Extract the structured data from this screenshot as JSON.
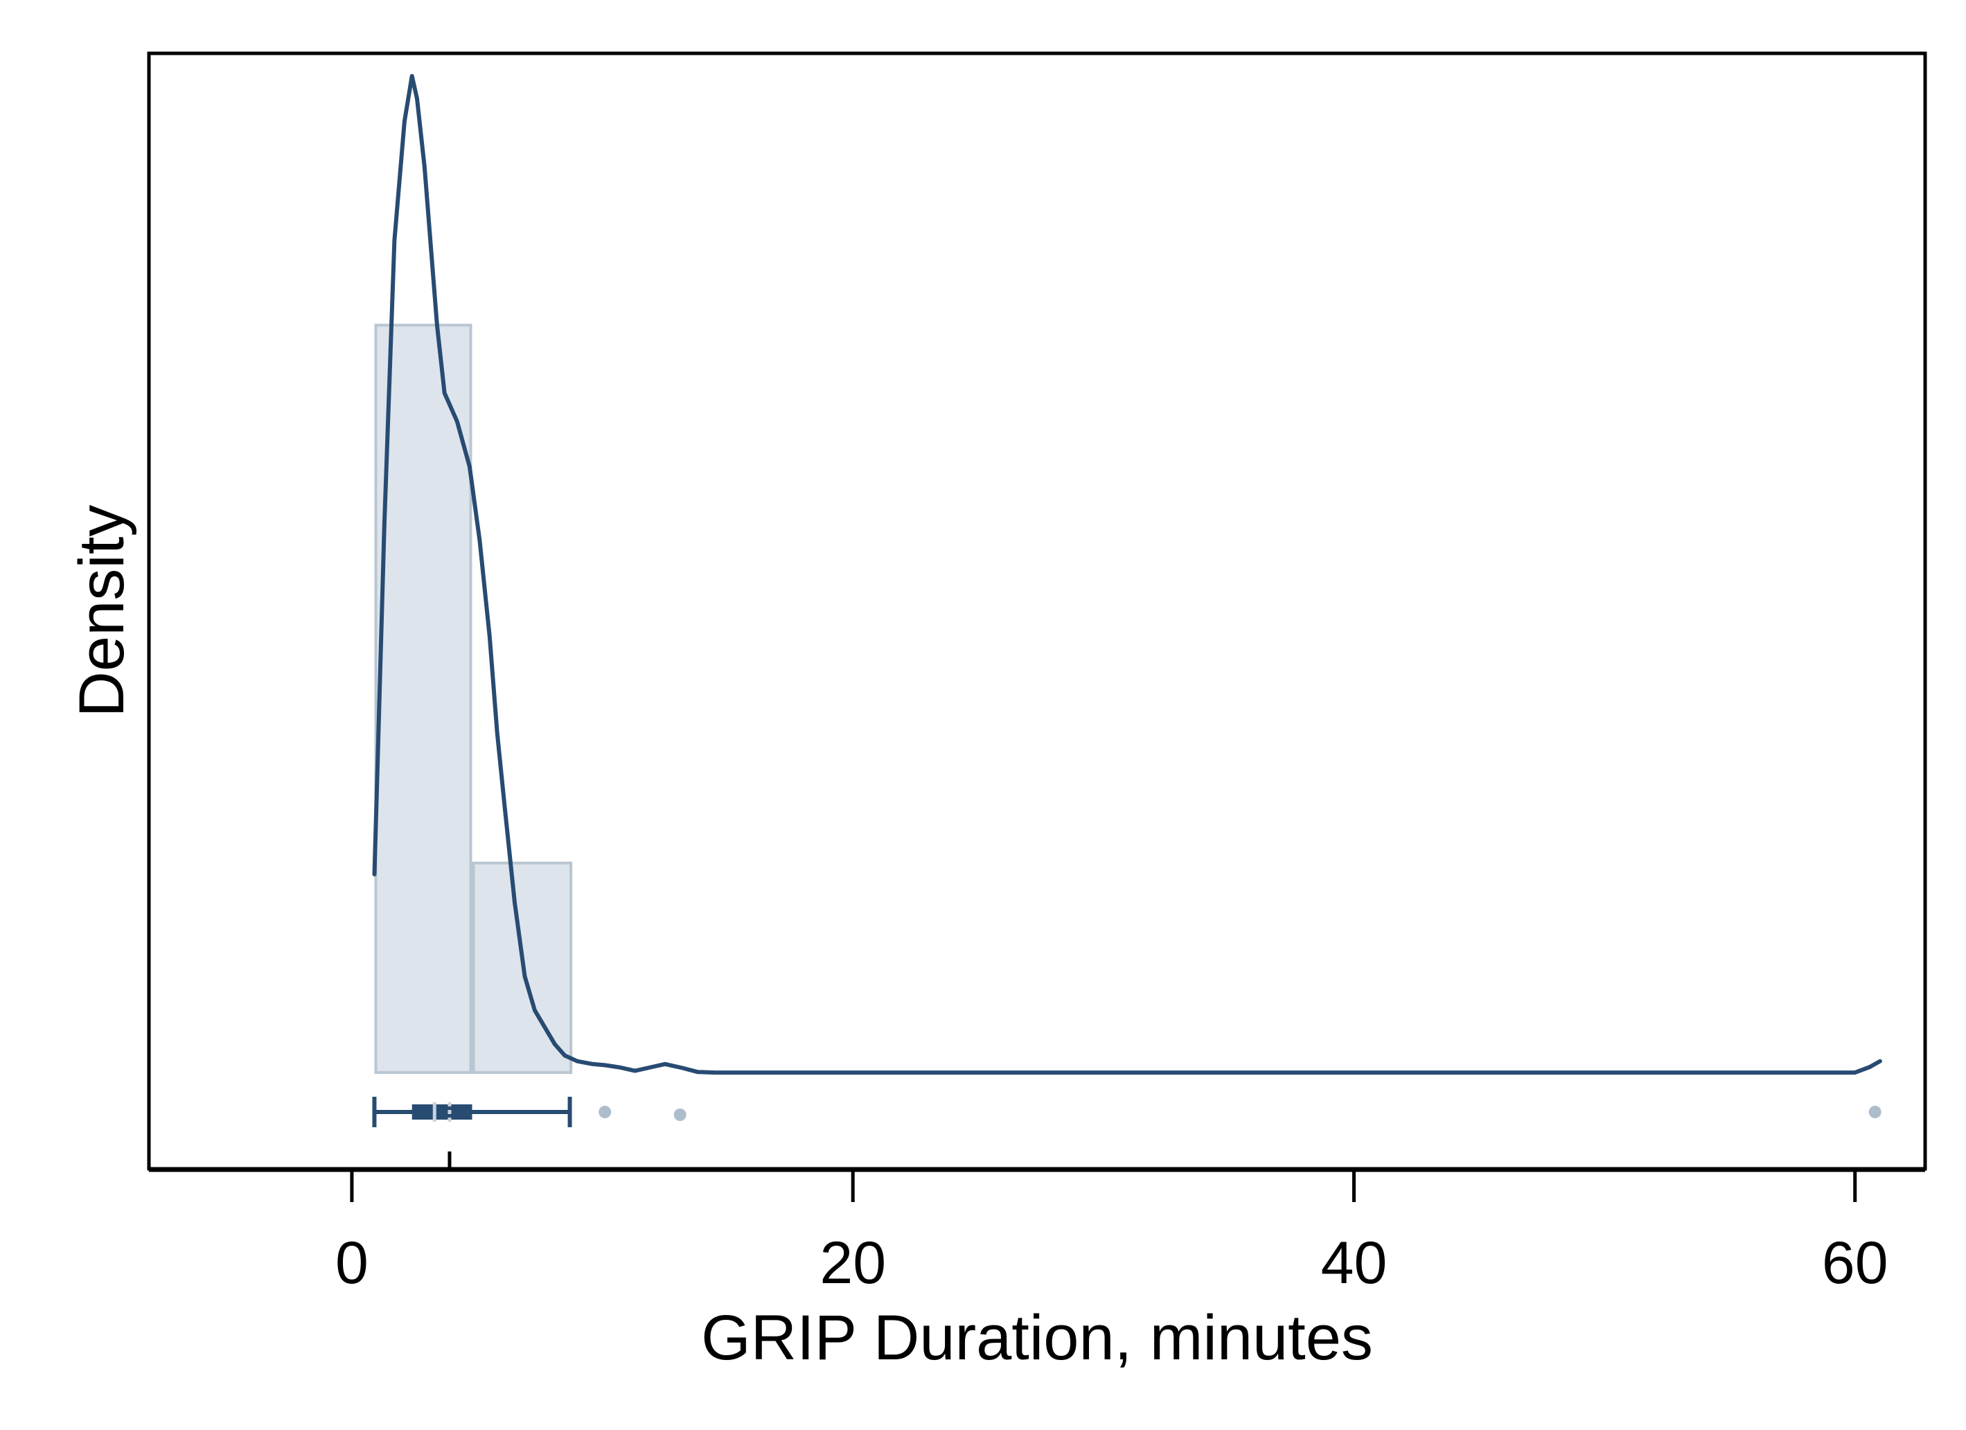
{
  "chart_data": {
    "type": "histogram",
    "xlabel": "GRIP Duration, minutes",
    "ylabel": "Density",
    "xlim": [
      -8.1,
      62.8
    ],
    "ylim": [
      -0.17,
      1.8
    ],
    "x_ticks": [
      0,
      20,
      40,
      60
    ],
    "x_tick_labels": [
      "0",
      "20",
      "40",
      "60"
    ],
    "y_ticks_shown": false,
    "grid": false,
    "legend": "none",
    "histogram_bins": [
      {
        "x0": 0.9,
        "x1": 4.8,
        "density": 1.32
      },
      {
        "x0": 4.8,
        "x1": 8.8,
        "density": 0.37
      }
    ],
    "density_curve": {
      "x": [
        0.9,
        1.3,
        1.7,
        2.1,
        2.4,
        2.6,
        2.9,
        3.4,
        3.7,
        4.2,
        4.7,
        5.1,
        5.5,
        5.8,
        6.1,
        6.5,
        6.9,
        7.3,
        7.7,
        8.1,
        8.5,
        9.0,
        9.6,
        10.1,
        10.7,
        11.3,
        11.8,
        12.5,
        13.2,
        13.8,
        14.5,
        16.0,
        20.0,
        30.0,
        40.0,
        50.0,
        55.0,
        60.0,
        60.6,
        61.0
      ],
      "y": [
        0.35,
        0.97,
        1.47,
        1.68,
        1.76,
        1.72,
        1.6,
        1.32,
        1.2,
        1.15,
        1.07,
        0.94,
        0.77,
        0.6,
        0.47,
        0.3,
        0.17,
        0.11,
        0.08,
        0.05,
        0.03,
        0.02,
        0.015,
        0.013,
        0.009,
        0.003,
        0.008,
        0.015,
        0.008,
        0.001,
        0.0,
        0.0,
        0.0,
        0.0,
        0.0,
        0.0,
        0.0,
        0.0,
        0.01,
        0.02
      ]
    },
    "boxplot": {
      "whisker_low": 0.9,
      "q1": 2.4,
      "median": 3.3,
      "q3": 4.8,
      "whisker_high": 8.7,
      "mean": 3.9,
      "outliers": [
        10.1,
        13.1,
        60.8
      ]
    },
    "colors": {
      "bar_fill": "#dde4ec",
      "bar_stroke": "#b9c6d2",
      "curve": "#284b72",
      "outlier": "#aebdcc",
      "frame": "#000000"
    }
  }
}
